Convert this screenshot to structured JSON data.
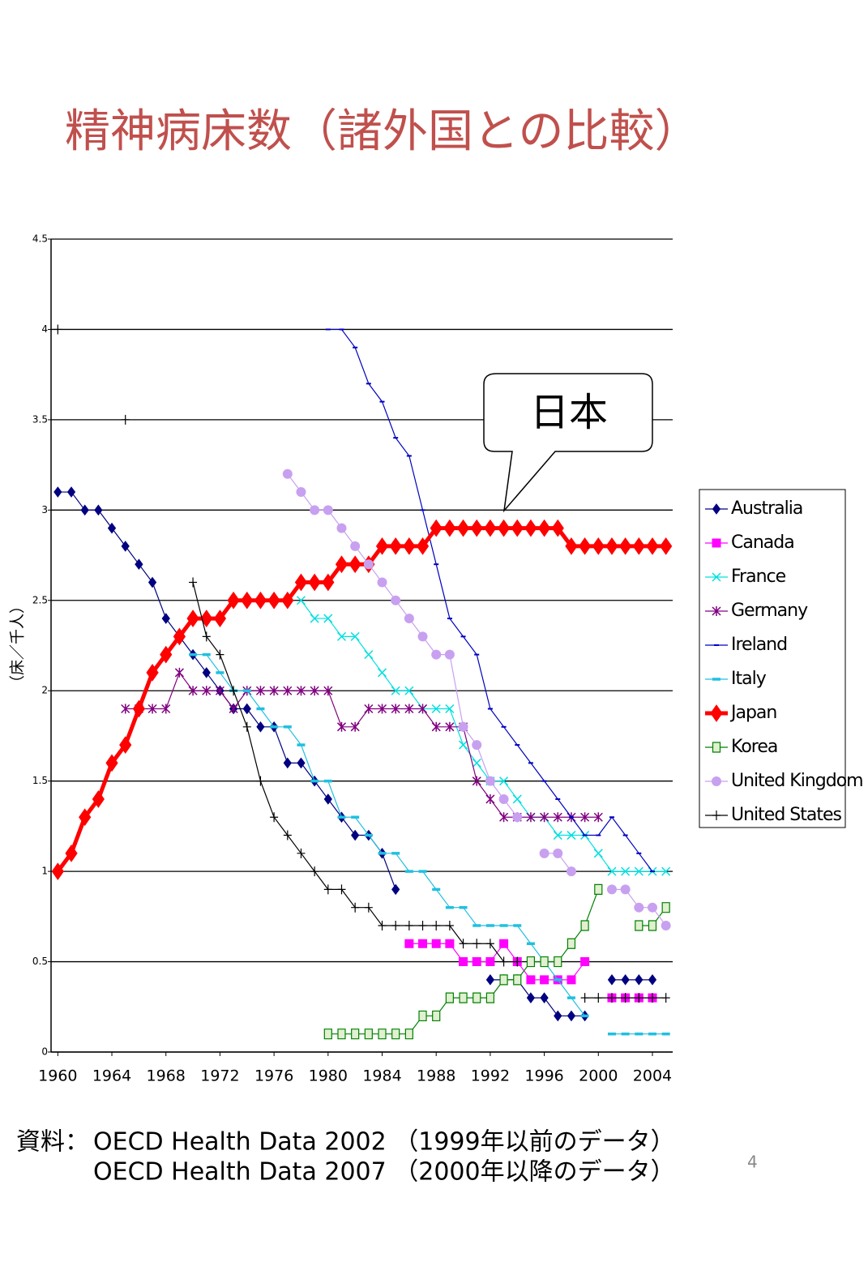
{
  "chart_data": {
    "type": "line",
    "title": "精神病床数（諸外国との比較）",
    "y_label": "（床／千人）",
    "callout": "日本",
    "xlim": [
      1959.5,
      2005.5
    ],
    "xticks": [
      1960,
      1964,
      1968,
      1972,
      1976,
      1980,
      1984,
      1988,
      1992,
      1996,
      2000,
      2004
    ],
    "ylim": [
      0,
      4.5
    ],
    "yticks": [
      0,
      0.5,
      1,
      1.5,
      2,
      2.5,
      3,
      3.5,
      4,
      4.5
    ],
    "grid": true,
    "legend": "right",
    "x": [
      1960,
      1961,
      1962,
      1963,
      1964,
      1965,
      1966,
      1967,
      1968,
      1969,
      1970,
      1971,
      1972,
      1973,
      1974,
      1975,
      1976,
      1977,
      1978,
      1979,
      1980,
      1981,
      1982,
      1983,
      1984,
      1985,
      1986,
      1987,
      1988,
      1989,
      1990,
      1991,
      1992,
      1993,
      1994,
      1995,
      1996,
      1997,
      1998,
      1999,
      2000,
      2001,
      2002,
      2003,
      2004,
      2005
    ],
    "series": [
      {
        "name": "Australia",
        "color": "#000080",
        "marker": "diamond",
        "values": [
          3.1,
          3.1,
          3.0,
          3.0,
          2.9,
          2.8,
          2.7,
          2.6,
          2.4,
          2.3,
          2.2,
          2.1,
          2.0,
          1.9,
          1.9,
          1.8,
          1.8,
          1.6,
          1.6,
          1.5,
          1.4,
          1.3,
          1.2,
          1.2,
          1.1,
          0.9,
          null,
          null,
          null,
          null,
          null,
          null,
          0.4,
          0.4,
          0.4,
          0.3,
          0.3,
          0.2,
          0.2,
          0.2,
          null,
          0.4,
          0.4,
          0.4,
          0.4,
          null
        ]
      },
      {
        "name": "Canada",
        "color": "#ff00ff",
        "marker": "square",
        "values": [
          null,
          null,
          null,
          null,
          null,
          null,
          null,
          null,
          null,
          null,
          null,
          null,
          null,
          null,
          null,
          null,
          null,
          null,
          null,
          null,
          null,
          null,
          null,
          null,
          null,
          null,
          0.6,
          0.6,
          0.6,
          0.6,
          0.5,
          0.5,
          0.5,
          0.6,
          0.5,
          0.4,
          0.4,
          0.4,
          0.4,
          0.5,
          null,
          0.3,
          0.3,
          0.3,
          0.3,
          null
        ]
      },
      {
        "name": "France",
        "color": "#00e0e0",
        "marker": "x",
        "values": [
          null,
          null,
          null,
          null,
          null,
          null,
          null,
          null,
          null,
          null,
          null,
          null,
          null,
          null,
          null,
          null,
          null,
          null,
          2.5,
          2.4,
          2.4,
          2.3,
          2.3,
          2.2,
          2.1,
          2.0,
          2.0,
          1.9,
          1.9,
          1.9,
          1.7,
          1.6,
          1.5,
          1.5,
          1.4,
          1.3,
          1.3,
          1.2,
          1.2,
          1.2,
          1.1,
          1.0,
          1.0,
          1.0,
          1.0,
          1.0
        ]
      },
      {
        "name": "Germany",
        "color": "#800080",
        "marker": "star",
        "values": [
          null,
          null,
          null,
          null,
          null,
          1.9,
          1.9,
          1.9,
          1.9,
          2.1,
          2.0,
          2.0,
          2.0,
          1.9,
          2.0,
          2.0,
          2.0,
          2.0,
          2.0,
          2.0,
          2.0,
          1.8,
          1.8,
          1.9,
          1.9,
          1.9,
          1.9,
          1.9,
          1.8,
          1.8,
          1.8,
          1.5,
          1.4,
          1.3,
          1.3,
          1.3,
          1.3,
          1.3,
          1.3,
          1.3,
          1.3,
          null,
          null,
          null,
          null,
          null
        ]
      },
      {
        "name": "Ireland",
        "color": "#0000c0",
        "marker": "dash",
        "values": [
          null,
          null,
          null,
          null,
          null,
          null,
          null,
          null,
          null,
          null,
          null,
          null,
          null,
          null,
          null,
          null,
          null,
          null,
          null,
          null,
          4.0,
          4.0,
          3.9,
          3.7,
          3.6,
          3.4,
          3.3,
          3.0,
          2.7,
          2.4,
          2.3,
          2.2,
          1.9,
          1.8,
          1.7,
          1.6,
          1.5,
          1.4,
          1.3,
          1.2,
          1.2,
          1.3,
          1.2,
          1.1,
          1.0,
          null
        ]
      },
      {
        "name": "Italy",
        "color": "#20c0e0",
        "marker": "bar",
        "values": [
          null,
          null,
          null,
          null,
          null,
          null,
          null,
          null,
          null,
          null,
          2.2,
          2.2,
          2.1,
          2.0,
          2.0,
          1.9,
          1.8,
          1.8,
          1.7,
          1.5,
          1.5,
          1.3,
          1.3,
          1.2,
          1.1,
          1.1,
          1.0,
          1.0,
          0.9,
          0.8,
          0.8,
          0.7,
          0.7,
          0.7,
          0.7,
          0.6,
          0.5,
          0.4,
          0.3,
          0.2,
          null,
          0.1,
          0.1,
          0.1,
          0.1,
          0.1
        ]
      },
      {
        "name": "Japan",
        "color": "#ff0000",
        "marker": "bigdiamond",
        "values": [
          1.0,
          1.1,
          1.3,
          1.4,
          1.6,
          1.7,
          1.9,
          2.1,
          2.2,
          2.3,
          2.4,
          2.4,
          2.4,
          2.5,
          2.5,
          2.5,
          2.5,
          2.5,
          2.6,
          2.6,
          2.6,
          2.7,
          2.7,
          2.7,
          2.8,
          2.8,
          2.8,
          2.8,
          2.9,
          2.9,
          2.9,
          2.9,
          2.9,
          2.9,
          2.9,
          2.9,
          2.9,
          2.9,
          2.8,
          2.8,
          2.8,
          2.8,
          2.8,
          2.8,
          2.8,
          2.8
        ]
      },
      {
        "name": "Korea",
        "color": "#008000",
        "marker": "opensquare",
        "values": [
          null,
          null,
          null,
          null,
          null,
          null,
          null,
          null,
          null,
          null,
          null,
          null,
          null,
          null,
          null,
          null,
          null,
          null,
          null,
          null,
          0.1,
          0.1,
          0.1,
          0.1,
          0.1,
          0.1,
          0.1,
          0.2,
          0.2,
          0.3,
          0.3,
          0.3,
          0.3,
          0.4,
          0.4,
          0.5,
          0.5,
          0.5,
          0.6,
          0.7,
          0.9,
          null,
          null,
          0.7,
          0.7,
          0.8
        ]
      },
      {
        "name": "United Kingdom",
        "color": "#c8a0f0",
        "marker": "circle",
        "values": [
          null,
          null,
          null,
          null,
          null,
          null,
          null,
          null,
          null,
          null,
          null,
          null,
          null,
          null,
          null,
          null,
          null,
          3.2,
          3.1,
          3.0,
          3.0,
          2.9,
          2.8,
          2.7,
          2.6,
          2.5,
          2.4,
          2.3,
          2.2,
          2.2,
          1.8,
          1.7,
          1.5,
          1.4,
          1.3,
          null,
          1.1,
          1.1,
          1.0,
          null,
          null,
          0.9,
          0.9,
          0.8,
          0.8,
          0.7
        ]
      },
      {
        "name": "United States",
        "color": "#000000",
        "marker": "plus",
        "values": [
          4.0,
          null,
          null,
          null,
          null,
          3.5,
          null,
          null,
          null,
          null,
          2.6,
          2.3,
          2.2,
          2.0,
          1.8,
          1.5,
          1.3,
          1.2,
          1.1,
          1.0,
          0.9,
          0.9,
          0.8,
          0.8,
          0.7,
          0.7,
          0.7,
          0.7,
          0.7,
          0.7,
          0.6,
          0.6,
          0.6,
          0.5,
          0.5,
          null,
          null,
          null,
          null,
          0.3,
          0.3,
          0.3,
          0.3,
          0.3,
          0.3,
          0.3
        ]
      }
    ]
  },
  "source": [
    "資料：",
    "OECD Health Data 2002 （1999年以前のデータ）",
    "OECD Health Data 2007 （2000年以降のデータ）"
  ],
  "page_number": "4"
}
